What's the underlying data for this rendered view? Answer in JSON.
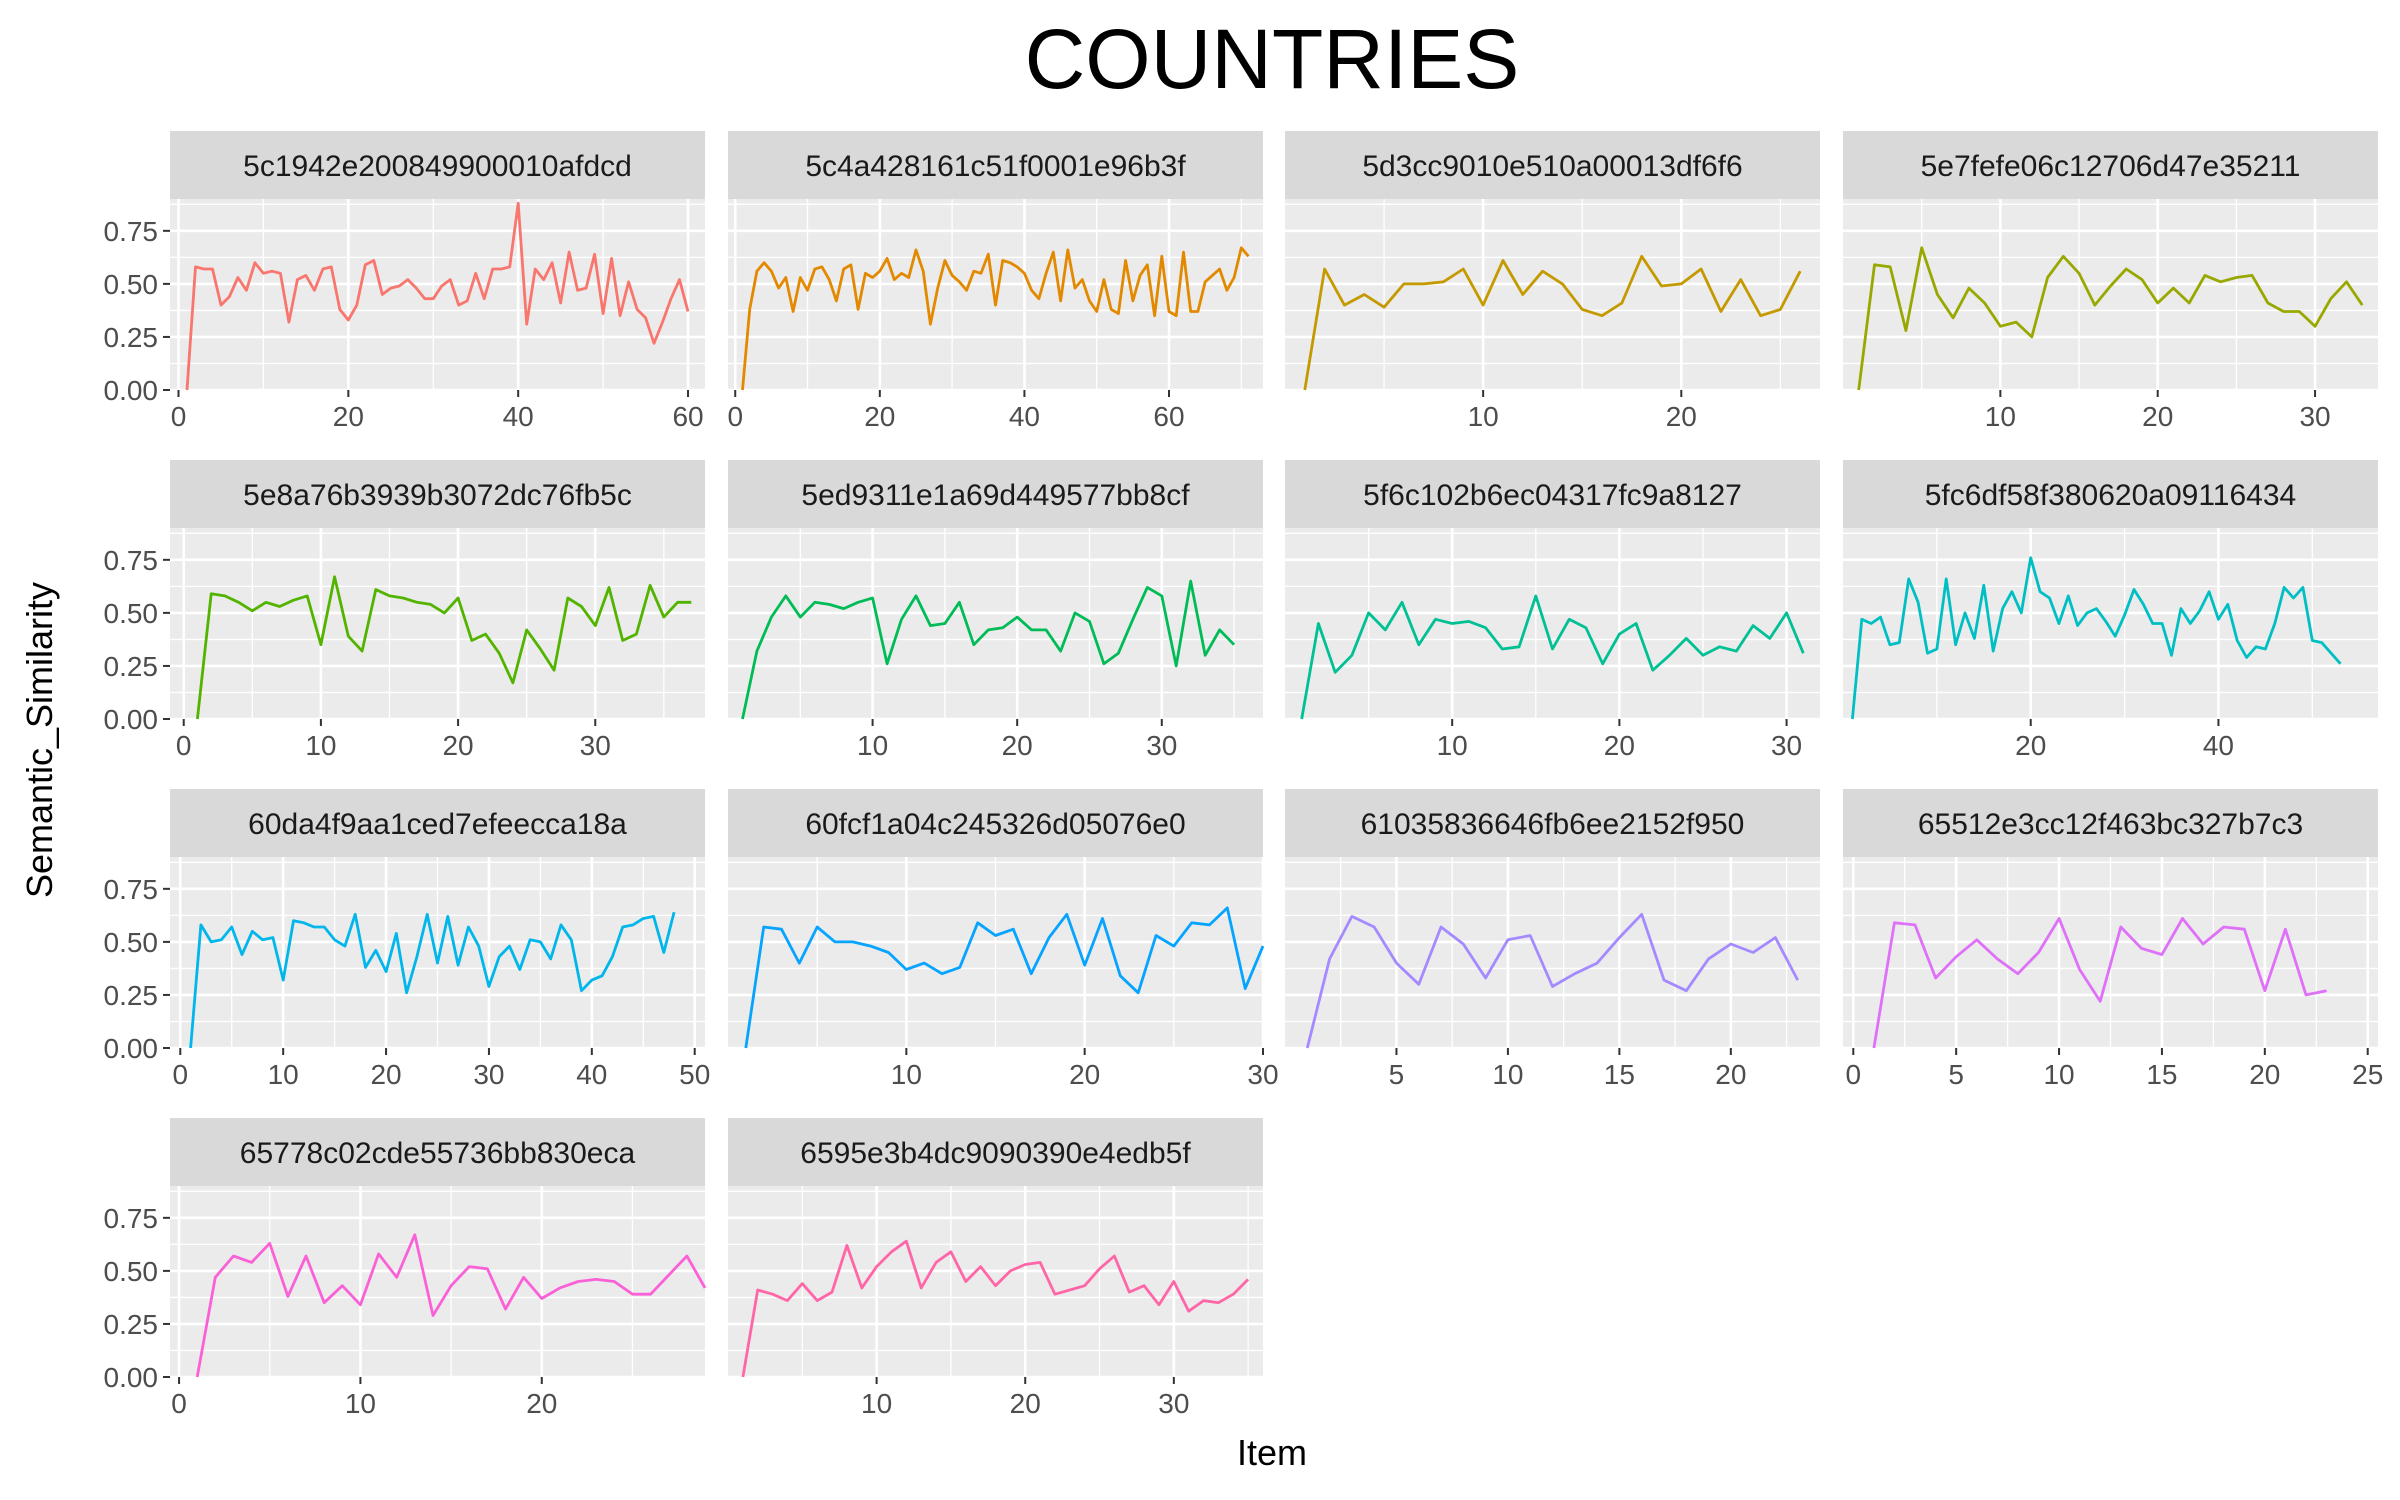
{
  "chart_data": {
    "type": "line",
    "title": "COUNTRIES",
    "xlabel": "Item",
    "ylabel": "Semantic_Similarity",
    "ylim": [
      0,
      0.9
    ],
    "y_ticks": [
      0,
      0.25,
      0.5,
      0.75
    ],
    "y_tick_labels": [
      "0.00",
      "0.25",
      "0.50",
      "0.75"
    ],
    "facet_layout": "4 columns, free x scales, shared y scale",
    "grid": true,
    "legend": "none",
    "panels": [
      {
        "name": "5c1942e200849900010afdcd",
        "color": "#F8766D",
        "x_ticks": [
          0,
          20,
          40,
          60
        ],
        "xlim": [
          -1,
          62
        ],
        "values": [
          0,
          0.58,
          0.57,
          0.57,
          0.4,
          0.44,
          0.53,
          0.47,
          0.6,
          0.55,
          0.56,
          0.55,
          0.32,
          0.52,
          0.54,
          0.47,
          0.57,
          0.58,
          0.38,
          0.33,
          0.4,
          0.59,
          0.61,
          0.45,
          0.48,
          0.49,
          0.52,
          0.48,
          0.43,
          0.43,
          0.49,
          0.52,
          0.4,
          0.42,
          0.55,
          0.43,
          0.57,
          0.57,
          0.58,
          0.88,
          0.31,
          0.57,
          0.52,
          0.6,
          0.41,
          0.65,
          0.47,
          0.48,
          0.64,
          0.36,
          0.62,
          0.35,
          0.51,
          0.38,
          0.34,
          0.22,
          0.32,
          0.43,
          0.52,
          0.37
        ]
      },
      {
        "name": "5c4a428161c51f0001e96b3f",
        "color": "#E38900",
        "x_ticks": [
          0,
          20,
          40,
          60
        ],
        "xlim": [
          -1,
          73
        ],
        "values": [
          0,
          0.38,
          0.56,
          0.6,
          0.56,
          0.48,
          0.53,
          0.37,
          0.53,
          0.47,
          0.57,
          0.58,
          0.52,
          0.42,
          0.57,
          0.59,
          0.38,
          0.55,
          0.53,
          0.56,
          0.62,
          0.52,
          0.55,
          0.53,
          0.66,
          0.56,
          0.31,
          0.48,
          0.61,
          0.54,
          0.51,
          0.47,
          0.56,
          0.55,
          0.64,
          0.4,
          0.61,
          0.6,
          0.58,
          0.55,
          0.47,
          0.43,
          0.55,
          0.65,
          0.42,
          0.66,
          0.48,
          0.52,
          0.42,
          0.37,
          0.52,
          0.38,
          0.36,
          0.61,
          0.42,
          0.54,
          0.59,
          0.35,
          0.63,
          0.37,
          0.35,
          0.65,
          0.37,
          0.37,
          0.51,
          0.54,
          0.57,
          0.47,
          0.53,
          0.67,
          0.63
        ]
      },
      {
        "name": "5d3cc9010e510a00013df6f6",
        "color": "#C49A00",
        "x_ticks": [
          10,
          20
        ],
        "xlim": [
          0,
          27
        ],
        "values": [
          0,
          0.57,
          0.4,
          0.45,
          0.39,
          0.5,
          0.5,
          0.51,
          0.57,
          0.4,
          0.61,
          0.45,
          0.56,
          0.5,
          0.38,
          0.35,
          0.41,
          0.63,
          0.49,
          0.5,
          0.57,
          0.37,
          0.52,
          0.35,
          0.38,
          0.56
        ]
      },
      {
        "name": "5e7fefe06c12706d47e35211",
        "color": "#99A800",
        "x_ticks": [
          10,
          20,
          30
        ],
        "xlim": [
          0,
          34
        ],
        "values": [
          0,
          0.59,
          0.58,
          0.28,
          0.67,
          0.45,
          0.34,
          0.48,
          0.41,
          0.3,
          0.32,
          0.25,
          0.53,
          0.63,
          0.55,
          0.4,
          0.49,
          0.57,
          0.52,
          0.41,
          0.48,
          0.41,
          0.54,
          0.51,
          0.53,
          0.54,
          0.41,
          0.37,
          0.37,
          0.3,
          0.43,
          0.51,
          0.4
        ]
      },
      {
        "name": "5e8a76b3939b3072dc76fb5c",
        "color": "#53B400",
        "x_ticks": [
          0,
          10,
          20,
          30
        ],
        "xlim": [
          -1,
          38
        ],
        "values": [
          0,
          0.59,
          0.58,
          0.55,
          0.51,
          0.55,
          0.53,
          0.56,
          0.58,
          0.35,
          0.67,
          0.39,
          0.32,
          0.61,
          0.58,
          0.57,
          0.55,
          0.54,
          0.5,
          0.57,
          0.37,
          0.4,
          0.31,
          0.17,
          0.42,
          0.33,
          0.23,
          0.57,
          0.53,
          0.44,
          0.62,
          0.37,
          0.4,
          0.63,
          0.48,
          0.55,
          0.55
        ]
      },
      {
        "name": "5ed9311e1a69d449577bb8cf",
        "color": "#00BC56",
        "x_ticks": [
          10,
          20,
          30
        ],
        "xlim": [
          0,
          37
        ],
        "values": [
          0,
          0.32,
          0.48,
          0.58,
          0.48,
          0.55,
          0.54,
          0.52,
          0.55,
          0.57,
          0.26,
          0.47,
          0.58,
          0.44,
          0.45,
          0.55,
          0.35,
          0.42,
          0.43,
          0.48,
          0.42,
          0.42,
          0.32,
          0.5,
          0.46,
          0.26,
          0.31,
          0.47,
          0.62,
          0.58,
          0.25,
          0.65,
          0.3,
          0.42,
          0.35
        ]
      },
      {
        "name": "5f6c102b6ec04317fc9a8127",
        "color": "#00C094",
        "x_ticks": [
          10,
          20,
          30
        ],
        "xlim": [
          0,
          32
        ],
        "values": [
          0,
          0.45,
          0.22,
          0.3,
          0.5,
          0.42,
          0.55,
          0.35,
          0.47,
          0.45,
          0.46,
          0.43,
          0.33,
          0.34,
          0.58,
          0.33,
          0.47,
          0.43,
          0.26,
          0.4,
          0.45,
          0.23,
          0.3,
          0.38,
          0.3,
          0.34,
          0.32,
          0.44,
          0.38,
          0.5,
          0.31
        ]
      },
      {
        "name": "5fc6df58f380620a09116434",
        "color": "#00BFC4",
        "x_ticks": [
          20,
          40
        ],
        "xlim": [
          0,
          57
        ],
        "values": [
          0,
          0.47,
          0.45,
          0.48,
          0.35,
          0.36,
          0.66,
          0.55,
          0.31,
          0.33,
          0.66,
          0.35,
          0.5,
          0.38,
          0.63,
          0.32,
          0.52,
          0.6,
          0.5,
          0.76,
          0.6,
          0.57,
          0.45,
          0.58,
          0.44,
          0.5,
          0.52,
          0.46,
          0.39,
          0.49,
          0.61,
          0.54,
          0.45,
          0.45,
          0.3,
          0.52,
          0.45,
          0.51,
          0.6,
          0.47,
          0.54,
          0.37,
          0.29,
          0.34,
          0.33,
          0.45,
          0.62,
          0.57,
          0.62,
          0.37,
          0.36,
          0.31,
          0.26
        ]
      },
      {
        "name": "60da4f9aa1ced7efeecca18a",
        "color": "#00B6EB",
        "x_ticks": [
          0,
          10,
          20,
          30,
          40,
          50
        ],
        "xlim": [
          -1,
          51
        ],
        "values": [
          0,
          0.58,
          0.5,
          0.51,
          0.57,
          0.44,
          0.55,
          0.51,
          0.52,
          0.32,
          0.6,
          0.59,
          0.57,
          0.57,
          0.51,
          0.48,
          0.63,
          0.38,
          0.46,
          0.36,
          0.54,
          0.26,
          0.43,
          0.63,
          0.4,
          0.62,
          0.39,
          0.57,
          0.48,
          0.29,
          0.43,
          0.48,
          0.37,
          0.51,
          0.5,
          0.42,
          0.58,
          0.51,
          0.27,
          0.32,
          0.34,
          0.43,
          0.57,
          0.58,
          0.61,
          0.62,
          0.45,
          0.64
        ]
      },
      {
        "name": "60fcf1a04c245326d05076e0",
        "color": "#06A4FF",
        "x_ticks": [
          10,
          20,
          30
        ],
        "xlim": [
          0,
          30
        ],
        "values": [
          0,
          0.57,
          0.56,
          0.4,
          0.57,
          0.5,
          0.5,
          0.48,
          0.45,
          0.37,
          0.4,
          0.35,
          0.38,
          0.59,
          0.53,
          0.56,
          0.35,
          0.52,
          0.63,
          0.39,
          0.61,
          0.34,
          0.26,
          0.53,
          0.48,
          0.59,
          0.58,
          0.66,
          0.28,
          0.48
        ]
      },
      {
        "name": "61035836646fb6ee2152f950",
        "color": "#A58AFF",
        "x_ticks": [
          5,
          10,
          15,
          20
        ],
        "xlim": [
          0,
          24
        ],
        "values": [
          0,
          0.42,
          0.62,
          0.57,
          0.4,
          0.3,
          0.57,
          0.49,
          0.33,
          0.51,
          0.53,
          0.29,
          0.35,
          0.4,
          0.52,
          0.63,
          0.32,
          0.27,
          0.42,
          0.49,
          0.45,
          0.52,
          0.32
        ]
      },
      {
        "name": "65512e3cc12f463bc327b7c3",
        "color": "#DF70F8",
        "x_ticks": [
          0,
          5,
          10,
          15,
          20,
          25
        ],
        "xlim": [
          -0.5,
          25.5
        ],
        "values": [
          0,
          0.59,
          0.58,
          0.33,
          0.43,
          0.51,
          0.42,
          0.35,
          0.45,
          0.61,
          0.37,
          0.22,
          0.57,
          0.47,
          0.44,
          0.61,
          0.49,
          0.57,
          0.56,
          0.27,
          0.56,
          0.25,
          0.27
        ]
      },
      {
        "name": "65778c02cde55736bb830eca",
        "color": "#FB61D7",
        "x_ticks": [
          0,
          10,
          20
        ],
        "xlim": [
          -0.5,
          29
        ],
        "values": [
          0,
          0.47,
          0.57,
          0.54,
          0.63,
          0.38,
          0.57,
          0.35,
          0.43,
          0.34,
          0.58,
          0.47,
          0.67,
          0.29,
          0.43,
          0.52,
          0.51,
          0.32,
          0.47,
          0.37,
          0.42,
          0.45,
          0.46,
          0.45,
          0.39,
          0.39,
          0.48,
          0.57,
          0.42
        ]
      },
      {
        "name": "6595e3b4dc9090390e4edb5f",
        "color": "#FF66A8",
        "x_ticks": [
          10,
          20,
          30
        ],
        "xlim": [
          0,
          36
        ],
        "values": [
          0,
          0.41,
          0.39,
          0.36,
          0.44,
          0.36,
          0.4,
          0.62,
          0.42,
          0.52,
          0.59,
          0.64,
          0.42,
          0.54,
          0.59,
          0.45,
          0.52,
          0.43,
          0.5,
          0.53,
          0.54,
          0.39,
          0.41,
          0.43,
          0.51,
          0.57,
          0.4,
          0.43,
          0.34,
          0.45,
          0.31,
          0.36,
          0.35,
          0.39,
          0.46
        ]
      }
    ]
  }
}
